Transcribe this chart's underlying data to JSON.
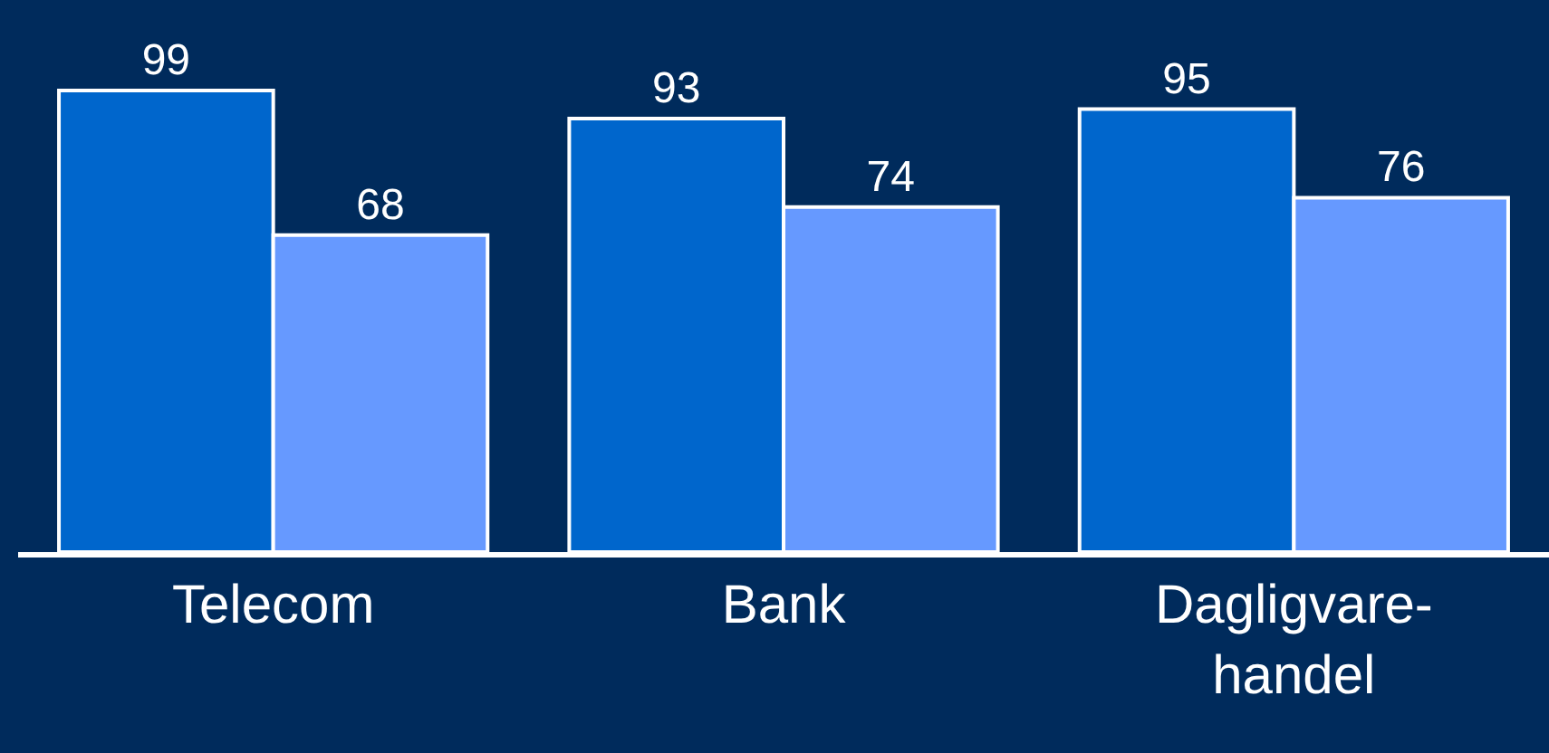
{
  "chart_data": {
    "type": "bar",
    "categories": [
      "Telecom",
      "Bank",
      "Dagligvare-\nhandel"
    ],
    "series": [
      {
        "color": "#0066cc",
        "values": [
          99,
          93,
          95
        ]
      },
      {
        "color": "#6699ff",
        "values": [
          68,
          74,
          76
        ]
      }
    ],
    "data_labels": true
  }
}
